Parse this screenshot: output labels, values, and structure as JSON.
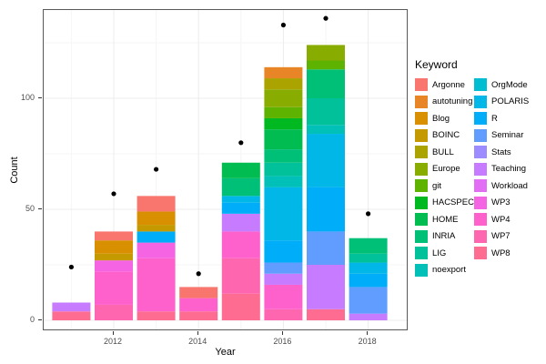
{
  "chart_data": {
    "type": "bar",
    "stacked": true,
    "xlabel": "Year",
    "ylabel": "Count",
    "legend_title": "Keyword",
    "legend_position": "right",
    "x_ticks": [
      2012,
      2014,
      2016,
      2018
    ],
    "y_ticks": [
      0,
      50,
      100
    ],
    "xlim": [
      2010.3,
      2018.7
    ],
    "ylim": [
      0,
      140
    ],
    "grid": true,
    "point_color": "#000000",
    "keywords": [
      {
        "name": "Argonne",
        "color": "#F8766D"
      },
      {
        "name": "autotuning",
        "color": "#E88526"
      },
      {
        "name": "Blog",
        "color": "#D89000"
      },
      {
        "name": "BOINC",
        "color": "#C49A00"
      },
      {
        "name": "BULL",
        "color": "#ABA300"
      },
      {
        "name": "Europe",
        "color": "#89AC00"
      },
      {
        "name": "git",
        "color": "#5EB300"
      },
      {
        "name": "HACSPECIS",
        "color": "#00B81F"
      },
      {
        "name": "HOME",
        "color": "#00BC51"
      },
      {
        "name": "INRIA",
        "color": "#00C078"
      },
      {
        "name": "LIG",
        "color": "#00C19A"
      },
      {
        "name": "noexport",
        "color": "#00C0B8"
      },
      {
        "name": "OrgMode",
        "color": "#00BDD2"
      },
      {
        "name": "POLARIS",
        "color": "#00B7E7"
      },
      {
        "name": "R",
        "color": "#00ADF9"
      },
      {
        "name": "Seminar",
        "color": "#619CFF"
      },
      {
        "name": "Stats",
        "color": "#9D8CFF"
      },
      {
        "name": "Teaching",
        "color": "#C77CFF"
      },
      {
        "name": "Workload",
        "color": "#E36EF6"
      },
      {
        "name": "WP3",
        "color": "#F564E3"
      },
      {
        "name": "WP4",
        "color": "#FF61CC"
      },
      {
        "name": "WP7",
        "color": "#FF66B0"
      },
      {
        "name": "WP8",
        "color": "#FF6C91"
      }
    ],
    "bars": [
      {
        "year": 2011,
        "total": 8,
        "segments": [
          {
            "keyword": "Teaching",
            "value": 4
          },
          {
            "keyword": "WP8",
            "value": 4
          }
        ]
      },
      {
        "year": 2012,
        "total": 40,
        "segments": [
          {
            "keyword": "Argonne",
            "value": 4
          },
          {
            "keyword": "Blog",
            "value": 6
          },
          {
            "keyword": "BOINC",
            "value": 3
          },
          {
            "keyword": "WP3",
            "value": 5
          },
          {
            "keyword": "WP4",
            "value": 15
          },
          {
            "keyword": "WP7",
            "value": 7
          }
        ]
      },
      {
        "year": 2013,
        "total": 56,
        "segments": [
          {
            "keyword": "Argonne",
            "value": 7
          },
          {
            "keyword": "Blog",
            "value": 6
          },
          {
            "keyword": "BOINC",
            "value": 3
          },
          {
            "keyword": "R",
            "value": 5
          },
          {
            "keyword": "WP3",
            "value": 7
          },
          {
            "keyword": "WP4",
            "value": 24
          },
          {
            "keyword": "WP8",
            "value": 4
          }
        ]
      },
      {
        "year": 2014,
        "total": 15,
        "segments": [
          {
            "keyword": "Argonne",
            "value": 5
          },
          {
            "keyword": "WP4",
            "value": 6
          },
          {
            "keyword": "WP8",
            "value": 4
          }
        ]
      },
      {
        "year": 2015,
        "total": 71,
        "segments": [
          {
            "keyword": "HOME",
            "value": 7
          },
          {
            "keyword": "INRIA",
            "value": 8
          },
          {
            "keyword": "POLARIS",
            "value": 3
          },
          {
            "keyword": "R",
            "value": 5
          },
          {
            "keyword": "Teaching",
            "value": 8
          },
          {
            "keyword": "WP4",
            "value": 12
          },
          {
            "keyword": "WP7",
            "value": 16
          },
          {
            "keyword": "WP8",
            "value": 12
          }
        ]
      },
      {
        "year": 2016,
        "total": 114,
        "segments": [
          {
            "keyword": "autotuning",
            "value": 5
          },
          {
            "keyword": "BULL",
            "value": 5
          },
          {
            "keyword": "Europe",
            "value": 8
          },
          {
            "keyword": "git",
            "value": 5
          },
          {
            "keyword": "HACSPECIS",
            "value": 5
          },
          {
            "keyword": "HOME",
            "value": 9
          },
          {
            "keyword": "INRIA",
            "value": 6
          },
          {
            "keyword": "LIG",
            "value": 6
          },
          {
            "keyword": "noexport",
            "value": 5
          },
          {
            "keyword": "POLARIS",
            "value": 24
          },
          {
            "keyword": "R",
            "value": 10
          },
          {
            "keyword": "Seminar",
            "value": 5
          },
          {
            "keyword": "Teaching",
            "value": 5
          },
          {
            "keyword": "WP4",
            "value": 11
          },
          {
            "keyword": "WP7",
            "value": 5
          }
        ]
      },
      {
        "year": 2017,
        "total": 124,
        "segments": [
          {
            "keyword": "Europe",
            "value": 7
          },
          {
            "keyword": "git",
            "value": 4
          },
          {
            "keyword": "INRIA",
            "value": 13
          },
          {
            "keyword": "LIG",
            "value": 12
          },
          {
            "keyword": "noexport",
            "value": 4
          },
          {
            "keyword": "POLARIS",
            "value": 24
          },
          {
            "keyword": "R",
            "value": 20
          },
          {
            "keyword": "Seminar",
            "value": 15
          },
          {
            "keyword": "Teaching",
            "value": 20
          },
          {
            "keyword": "WP8",
            "value": 5
          }
        ]
      },
      {
        "year": 2018,
        "total": 37,
        "segments": [
          {
            "keyword": "INRIA",
            "value": 7
          },
          {
            "keyword": "LIG",
            "value": 4
          },
          {
            "keyword": "POLARIS",
            "value": 5
          },
          {
            "keyword": "R",
            "value": 6
          },
          {
            "keyword": "Seminar",
            "value": 12
          },
          {
            "keyword": "Teaching",
            "value": 3
          }
        ]
      }
    ],
    "points": [
      {
        "year": 2011,
        "value": 24
      },
      {
        "year": 2012,
        "value": 57
      },
      {
        "year": 2013,
        "value": 68
      },
      {
        "year": 2014,
        "value": 21
      },
      {
        "year": 2015,
        "value": 80
      },
      {
        "year": 2016,
        "value": 133
      },
      {
        "year": 2017,
        "value": 136
      },
      {
        "year": 2018,
        "value": 48
      }
    ]
  }
}
